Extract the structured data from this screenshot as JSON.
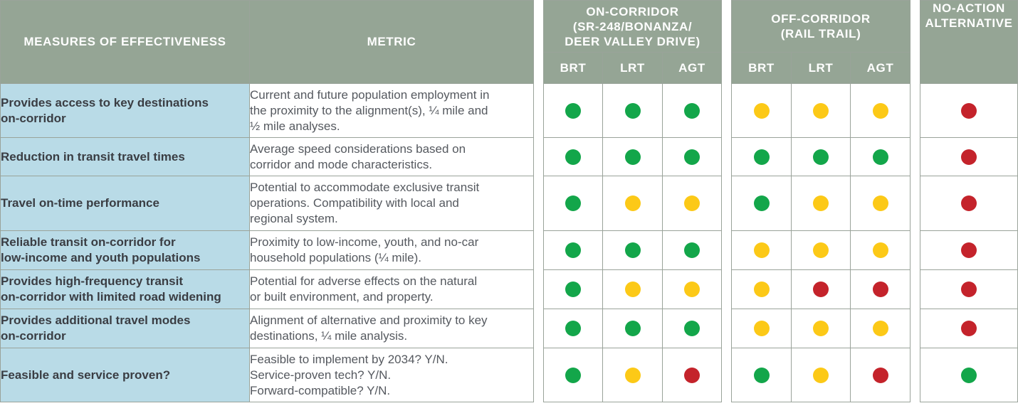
{
  "colors": {
    "header_bg": "#95a595",
    "measure_bg": "#b9dbe7",
    "green": "#13a64a",
    "yellow": "#fcc917",
    "red": "#c4232b"
  },
  "headers": {
    "measures": "MEASURES OF EFFECTIVENESS",
    "metric": "METRIC",
    "on_corridor": [
      "ON-CORRIDOR",
      "(SR-248/BONANZA/",
      "DEER VALLEY DRIVE)"
    ],
    "off_corridor": [
      "OFF-CORRIDOR",
      "(RAIL TRAIL)"
    ],
    "no_action": [
      "NO-ACTION",
      "ALTERNATIVE"
    ],
    "modes": [
      "BRT",
      "LRT",
      "AGT"
    ]
  },
  "rows": [
    {
      "measure": [
        "Provides access to key destinations",
        "on-corridor"
      ],
      "metric": [
        "Current and future population employment in",
        "the proximity to the alignment(s), ¼ mile and",
        "½ mile analyses."
      ],
      "on": [
        "green",
        "green",
        "green"
      ],
      "off": [
        "yellow",
        "yellow",
        "yellow"
      ],
      "na": "red"
    },
    {
      "measure": [
        "Reduction in transit travel times"
      ],
      "metric": [
        "Average speed considerations based on",
        "corridor and mode characteristics."
      ],
      "on": [
        "green",
        "green",
        "green"
      ],
      "off": [
        "green",
        "green",
        "green"
      ],
      "na": "red"
    },
    {
      "measure": [
        "Travel on-time performance"
      ],
      "metric": [
        "Potential to accommodate exclusive transit",
        "operations. Compatibility with local and",
        "regional system."
      ],
      "on": [
        "green",
        "yellow",
        "yellow"
      ],
      "off": [
        "green",
        "yellow",
        "yellow"
      ],
      "na": "red"
    },
    {
      "measure": [
        "Reliable transit on-corridor for",
        "low-income and youth populations"
      ],
      "metric": [
        "Proximity to low-income, youth, and no-car",
        "household populations (¼ mile)."
      ],
      "on": [
        "green",
        "green",
        "green"
      ],
      "off": [
        "yellow",
        "yellow",
        "yellow"
      ],
      "na": "red"
    },
    {
      "measure": [
        "Provides high-frequency transit",
        "on-corridor with limited road widening"
      ],
      "metric": [
        "Potential for adverse effects on the natural",
        "or built environment, and property."
      ],
      "on": [
        "green",
        "yellow",
        "yellow"
      ],
      "off": [
        "yellow",
        "red",
        "red"
      ],
      "na": "red"
    },
    {
      "measure": [
        "Provides additional travel modes",
        "on-corridor"
      ],
      "metric": [
        "Alignment of alternative and proximity to key",
        "destinations, ¼ mile analysis."
      ],
      "on": [
        "green",
        "green",
        "green"
      ],
      "off": [
        "yellow",
        "yellow",
        "yellow"
      ],
      "na": "red"
    },
    {
      "measure": [
        "Feasible and service proven?"
      ],
      "metric": [
        "Feasible to implement by 2034? Y/N.",
        "Service-proven tech? Y/N.",
        "Forward-compatible? Y/N."
      ],
      "on": [
        "green",
        "yellow",
        "red"
      ],
      "off": [
        "green",
        "yellow",
        "red"
      ],
      "na": "green"
    }
  ]
}
